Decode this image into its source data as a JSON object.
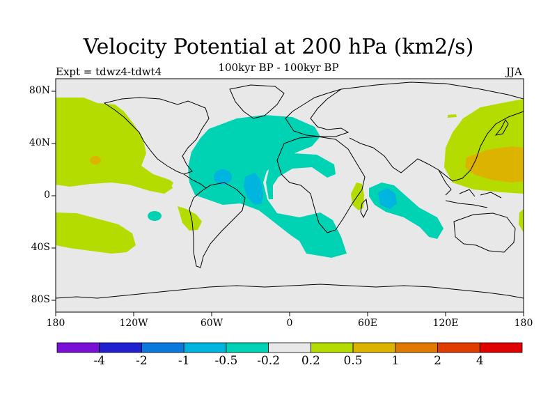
{
  "title": "Velocity Potential at 200 hPa (km2/s)",
  "subtitle": "100kyr BP - 100kyr BP",
  "expt_label": "Expt = tdwz4-tdwt4",
  "season": "JJA",
  "lat_ticks": [
    "80N",
    "40N",
    "0",
    "40S",
    "80S"
  ],
  "lon_ticks": [
    "180",
    "120W",
    "60W",
    "0",
    "60E",
    "120E",
    "180"
  ],
  "colorbar": {
    "colors": [
      "#7a10d8",
      "#2020d0",
      "#0a78dc",
      "#00b4e0",
      "#00d2b4",
      "#e8e8e8",
      "#b4dc00",
      "#dcb400",
      "#e07a00",
      "#e03c00",
      "#e00000"
    ],
    "labels": [
      "-4",
      "-2",
      "-1",
      "-0.5",
      "-0.2",
      "0.2",
      "0.5",
      "1",
      "2",
      "4"
    ]
  },
  "colors": {
    "ocean_background": "#e8e8e8",
    "positive_fill": "#b4dc00",
    "strong_positive_fill": "#dcb400",
    "negative_fill": "#00d2b4",
    "strong_negative_fill": "#00b4e0"
  }
}
